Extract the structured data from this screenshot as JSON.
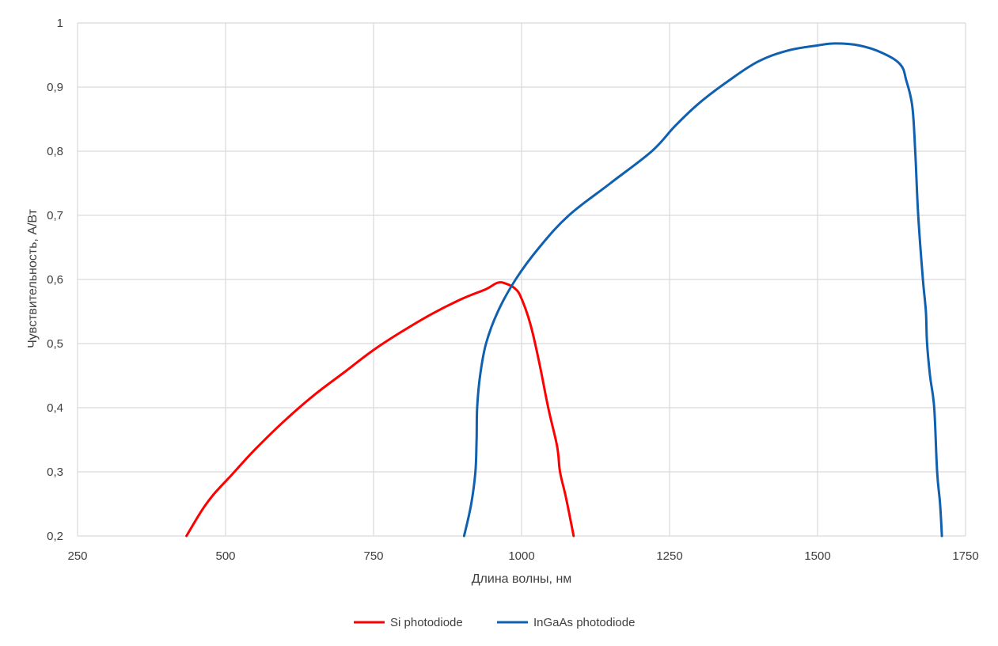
{
  "chart_data": {
    "type": "line",
    "xlabel": "Длина волны, нм",
    "ylabel": "Чувствительность, А/Вт",
    "xlim": [
      250,
      1750
    ],
    "ylim": [
      0.2,
      1.0
    ],
    "x_ticks": [
      250,
      500,
      750,
      1000,
      1250,
      1500,
      1750
    ],
    "y_ticks": [
      0.2,
      0.3,
      0.4,
      0.5,
      0.6,
      0.7,
      0.8,
      0.9,
      1.0
    ],
    "x_tick_labels": [
      "250",
      "500",
      "750",
      "1000",
      "1250",
      "1500",
      "1750"
    ],
    "y_tick_labels": [
      "0,2",
      "0,3",
      "0,4",
      "0,5",
      "0,6",
      "0,7",
      "0,8",
      "0,9",
      "1"
    ],
    "grid": true,
    "legend_position": "bottom",
    "series": [
      {
        "name": "Si photodiode",
        "color": "#ff0000",
        "points": [
          [
            434,
            0.2
          ],
          [
            460,
            0.24
          ],
          [
            480,
            0.265
          ],
          [
            510,
            0.295
          ],
          [
            550,
            0.335
          ],
          [
            600,
            0.38
          ],
          [
            650,
            0.42
          ],
          [
            700,
            0.455
          ],
          [
            750,
            0.49
          ],
          [
            800,
            0.52
          ],
          [
            850,
            0.547
          ],
          [
            900,
            0.57
          ],
          [
            940,
            0.585
          ],
          [
            960,
            0.595
          ],
          [
            975,
            0.593
          ],
          [
            990,
            0.585
          ],
          [
            1000,
            0.57
          ],
          [
            1015,
            0.53
          ],
          [
            1030,
            0.47
          ],
          [
            1045,
            0.4
          ],
          [
            1060,
            0.34
          ],
          [
            1065,
            0.3
          ],
          [
            1075,
            0.26
          ],
          [
            1088,
            0.2
          ]
        ]
      },
      {
        "name": "InGaAs photodiode",
        "color": "#1060b0",
        "points": [
          [
            903,
            0.2
          ],
          [
            915,
            0.25
          ],
          [
            922,
            0.3
          ],
          [
            924,
            0.35
          ],
          [
            925,
            0.4
          ],
          [
            930,
            0.45
          ],
          [
            940,
            0.5
          ],
          [
            960,
            0.55
          ],
          [
            990,
            0.6
          ],
          [
            1030,
            0.65
          ],
          [
            1080,
            0.7
          ],
          [
            1150,
            0.75
          ],
          [
            1220,
            0.8
          ],
          [
            1260,
            0.84
          ],
          [
            1300,
            0.875
          ],
          [
            1350,
            0.91
          ],
          [
            1400,
            0.94
          ],
          [
            1450,
            0.957
          ],
          [
            1500,
            0.965
          ],
          [
            1530,
            0.968
          ],
          [
            1570,
            0.965
          ],
          [
            1610,
            0.953
          ],
          [
            1640,
            0.935
          ],
          [
            1650,
            0.91
          ],
          [
            1660,
            0.87
          ],
          [
            1665,
            0.8
          ],
          [
            1670,
            0.7
          ],
          [
            1678,
            0.6
          ],
          [
            1683,
            0.55
          ],
          [
            1685,
            0.5
          ],
          [
            1690,
            0.45
          ],
          [
            1697,
            0.4
          ],
          [
            1702,
            0.3
          ],
          [
            1707,
            0.25
          ],
          [
            1710,
            0.2
          ]
        ]
      }
    ]
  }
}
